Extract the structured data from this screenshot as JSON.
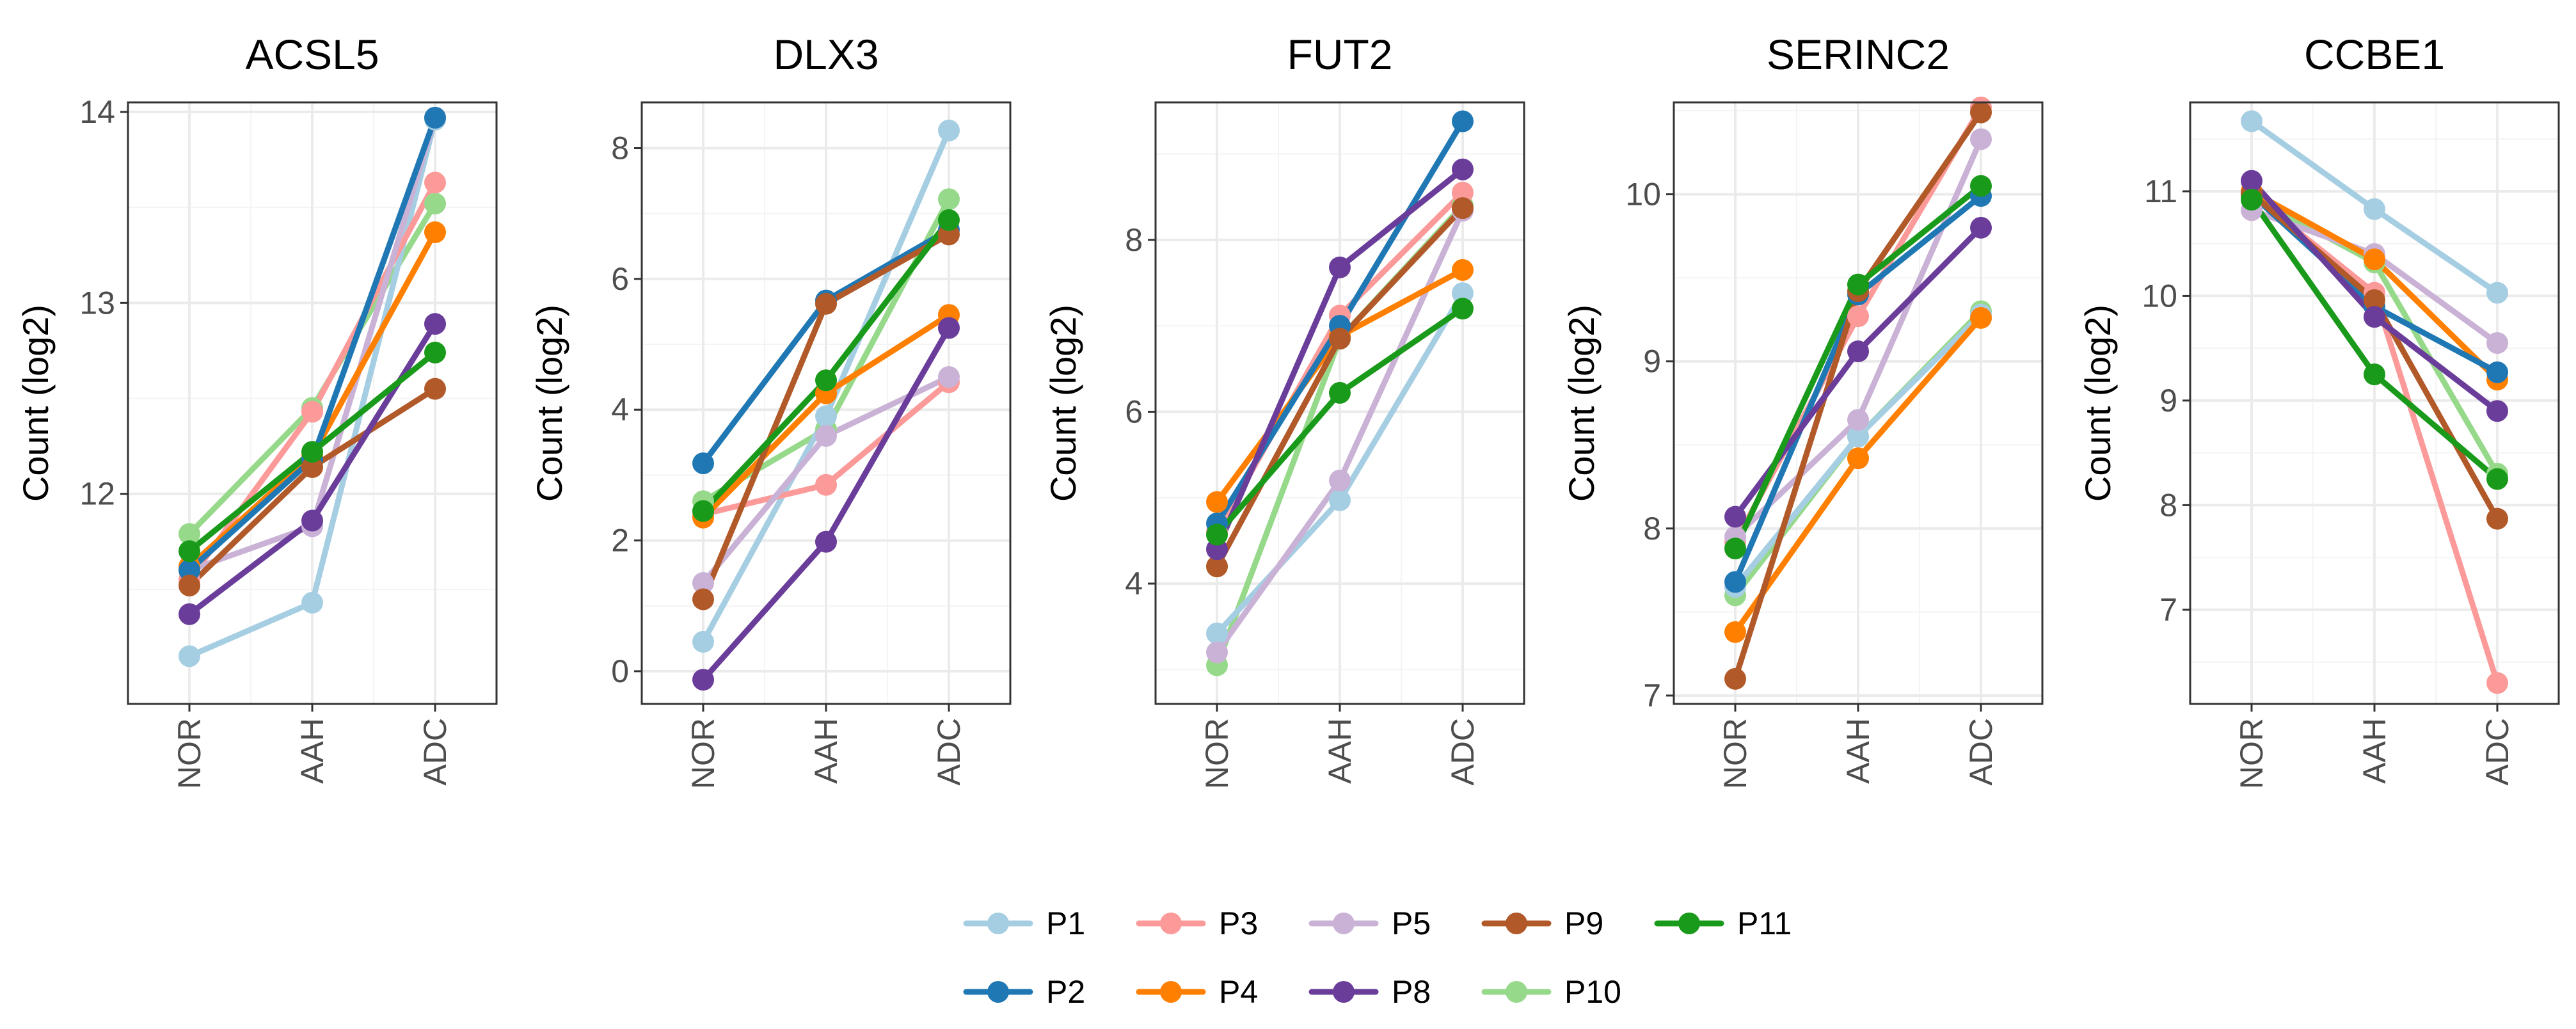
{
  "chart_data": {
    "type": "line",
    "x_categories": [
      "NOR",
      "AAH",
      "ADC"
    ],
    "legend": {
      "position": "bottom",
      "entries": [
        {
          "name": "P1",
          "color": "#a6cee3"
        },
        {
          "name": "P3",
          "color": "#fb9a99"
        },
        {
          "name": "P5",
          "color": "#cab2d6"
        },
        {
          "name": "P9",
          "color": "#b15928"
        },
        {
          "name": "P11",
          "color": "#1a9a1a"
        },
        {
          "name": "P2",
          "color": "#1f78b4"
        },
        {
          "name": "P4",
          "color": "#ff7f00"
        },
        {
          "name": "P8",
          "color": "#6a3d9a"
        },
        {
          "name": "P10",
          "color": "#96d98a"
        }
      ]
    },
    "series_order": [
      "P10",
      "P1",
      "P3",
      "P5",
      "P4",
      "P2",
      "P9",
      "P8",
      "P11"
    ],
    "panels": [
      {
        "title": "ACSL5",
        "ylabel": "Count (log2)",
        "ylim": [
          10.9,
          14.05
        ],
        "yticks": [
          12,
          13,
          14
        ],
        "series": {
          "P1": [
            11.15,
            11.43,
            13.96
          ],
          "P2": [
            11.6,
            12.18,
            13.97
          ],
          "P3": [
            11.55,
            12.43,
            13.63
          ],
          "P4": [
            11.62,
            12.2,
            13.37
          ],
          "P5": [
            11.6,
            11.83,
            13.97
          ],
          "P8": [
            11.37,
            11.86,
            12.89
          ],
          "P9": [
            11.52,
            12.14,
            12.55
          ],
          "P10": [
            11.79,
            12.45,
            13.52
          ],
          "P11": [
            11.7,
            12.22,
            12.74
          ]
        }
      },
      {
        "title": "DLX3",
        "ylabel": "Count (log2)",
        "ylim": [
          -0.5,
          8.7
        ],
        "yticks": [
          0,
          2,
          4,
          6,
          8
        ],
        "series": {
          "P1": [
            0.45,
            3.9,
            8.27
          ],
          "P2": [
            3.18,
            5.67,
            6.75
          ],
          "P3": [
            2.4,
            2.85,
            4.42
          ],
          "P4": [
            2.35,
            4.25,
            5.45
          ],
          "P5": [
            1.35,
            3.6,
            4.5
          ],
          "P8": [
            -0.13,
            1.98,
            5.25
          ],
          "P9": [
            1.1,
            5.62,
            6.68
          ],
          "P10": [
            2.6,
            3.7,
            7.22
          ],
          "P11": [
            2.45,
            4.45,
            6.9
          ]
        }
      },
      {
        "title": "FUT2",
        "ylabel": "Count (log2)",
        "ylim": [
          2.6,
          9.6
        ],
        "yticks": [
          4,
          6,
          8
        ],
        "series": {
          "P1": [
            3.42,
            4.97,
            7.38
          ],
          "P2": [
            4.7,
            7.0,
            9.38
          ],
          "P3": [
            4.6,
            7.12,
            8.55
          ],
          "P4": [
            4.95,
            6.88,
            7.65
          ],
          "P5": [
            3.2,
            5.2,
            8.34
          ],
          "P8": [
            4.4,
            7.68,
            8.82
          ],
          "P9": [
            4.2,
            6.85,
            8.37
          ],
          "P10": [
            3.05,
            6.85,
            8.4
          ],
          "P11": [
            4.57,
            6.22,
            7.2
          ]
        }
      },
      {
        "title": "SERINC2",
        "ylabel": "Count (log2)",
        "ylim": [
          6.95,
          10.55
        ],
        "yticks": [
          7,
          8,
          9,
          10
        ],
        "series": {
          "P1": [
            7.65,
            8.55,
            9.28
          ],
          "P2": [
            7.68,
            9.4,
            9.99
          ],
          "P3": [
            7.92,
            9.27,
            10.52
          ],
          "P4": [
            7.38,
            8.42,
            9.26
          ],
          "P5": [
            7.95,
            8.65,
            10.33
          ],
          "P8": [
            8.07,
            9.06,
            9.8
          ],
          "P9": [
            7.1,
            9.42,
            10.49
          ],
          "P10": [
            7.6,
            8.55,
            9.3
          ],
          "P11": [
            7.88,
            9.46,
            10.05
          ]
        }
      },
      {
        "title": "CCBE1",
        "ylabel": "Count (log2)",
        "ylim": [
          6.1,
          11.85
        ],
        "yticks": [
          7,
          8,
          9,
          10,
          11
        ],
        "series": {
          "P1": [
            11.67,
            10.83,
            10.03
          ],
          "P2": [
            10.97,
            9.9,
            9.27
          ],
          "P3": [
            10.97,
            10.03,
            6.3
          ],
          "P4": [
            11.0,
            10.35,
            9.2
          ],
          "P5": [
            10.82,
            10.4,
            9.55
          ],
          "P8": [
            11.1,
            9.8,
            8.9
          ],
          "P9": [
            10.98,
            9.96,
            7.87
          ],
          "P10": [
            10.95,
            10.32,
            8.3
          ],
          "P11": [
            10.92,
            9.25,
            8.25
          ]
        }
      }
    ]
  }
}
